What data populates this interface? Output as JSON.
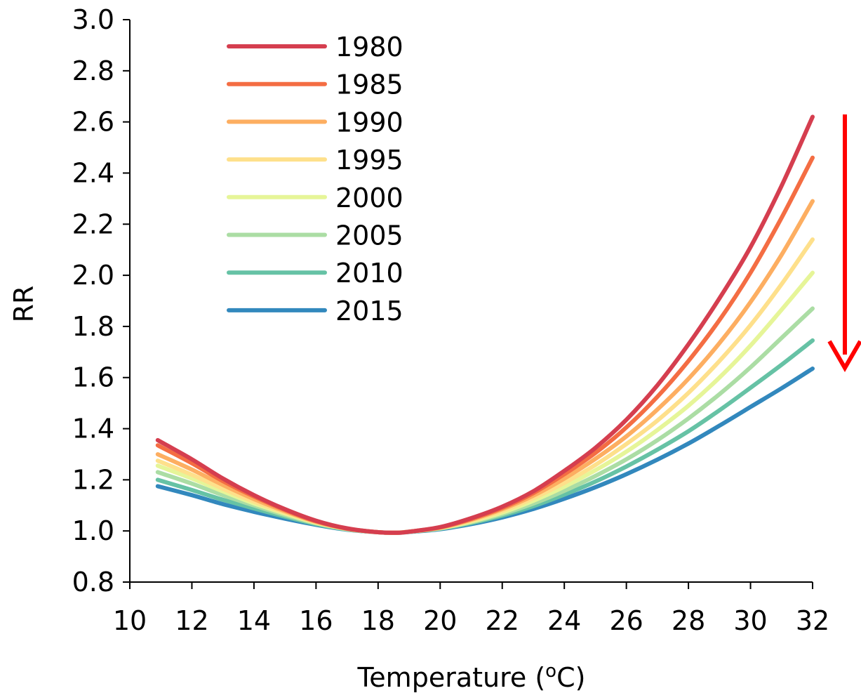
{
  "chart_data": {
    "type": "line",
    "xlabel": "Temperature (",
    "xlabel_sup": "o",
    "xlabel_suffix": "C)",
    "ylabel": "RR",
    "xlim": [
      10,
      32
    ],
    "ylim": [
      0.8,
      3.0
    ],
    "x_ticks": [
      "10",
      "12",
      "14",
      "16",
      "18",
      "20",
      "22",
      "24",
      "26",
      "28",
      "30",
      "32"
    ],
    "y_ticks": [
      "0.8",
      "1.0",
      "1.2",
      "1.4",
      "1.6",
      "1.8",
      "2.0",
      "2.2",
      "2.4",
      "2.6",
      "2.8",
      "3.0"
    ],
    "grid": false,
    "legend_position": "top-left",
    "x": [
      10.9,
      12,
      13,
      14,
      15,
      16,
      17,
      18,
      18.6,
      19,
      20,
      21,
      22,
      23,
      24,
      25,
      26,
      27,
      28,
      29,
      30,
      31,
      32
    ],
    "series": [
      {
        "name": "1980",
        "color": "#d53e4f",
        "values": [
          1.355,
          1.28,
          1.205,
          1.14,
          1.085,
          1.04,
          1.01,
          0.995,
          0.993,
          0.997,
          1.015,
          1.05,
          1.095,
          1.155,
          1.235,
          1.325,
          1.435,
          1.57,
          1.73,
          1.91,
          2.11,
          2.35,
          2.62
        ]
      },
      {
        "name": "1985",
        "color": "#f46d43",
        "values": [
          1.335,
          1.265,
          1.195,
          1.135,
          1.082,
          1.038,
          1.009,
          0.995,
          0.993,
          0.997,
          1.014,
          1.047,
          1.09,
          1.148,
          1.222,
          1.305,
          1.405,
          1.525,
          1.665,
          1.825,
          2.01,
          2.225,
          2.46
        ]
      },
      {
        "name": "1990",
        "color": "#fdae61",
        "values": [
          1.3,
          1.24,
          1.18,
          1.125,
          1.077,
          1.036,
          1.009,
          0.995,
          0.993,
          0.997,
          1.013,
          1.044,
          1.085,
          1.138,
          1.205,
          1.282,
          1.37,
          1.475,
          1.595,
          1.735,
          1.895,
          2.08,
          2.29
        ]
      },
      {
        "name": "1995",
        "color": "#fee08b",
        "values": [
          1.275,
          1.22,
          1.165,
          1.115,
          1.072,
          1.034,
          1.008,
          0.995,
          0.993,
          0.997,
          1.012,
          1.04,
          1.078,
          1.128,
          1.188,
          1.258,
          1.34,
          1.432,
          1.54,
          1.665,
          1.805,
          1.965,
          2.14
        ]
      },
      {
        "name": "2000",
        "color": "#e6f598",
        "values": [
          1.255,
          1.205,
          1.155,
          1.108,
          1.068,
          1.032,
          1.008,
          0.995,
          0.993,
          0.997,
          1.011,
          1.037,
          1.072,
          1.118,
          1.173,
          1.237,
          1.31,
          1.395,
          1.49,
          1.6,
          1.725,
          1.865,
          2.01
        ]
      },
      {
        "name": "2005",
        "color": "#abdda4",
        "values": [
          1.23,
          1.185,
          1.14,
          1.1,
          1.062,
          1.03,
          1.007,
          0.995,
          0.993,
          0.997,
          1.01,
          1.034,
          1.066,
          1.107,
          1.157,
          1.215,
          1.28,
          1.355,
          1.44,
          1.535,
          1.64,
          1.755,
          1.87
        ]
      },
      {
        "name": "2010",
        "color": "#66c2a5",
        "values": [
          1.2,
          1.16,
          1.122,
          1.088,
          1.056,
          1.027,
          1.006,
          0.995,
          0.993,
          0.997,
          1.009,
          1.031,
          1.06,
          1.097,
          1.142,
          1.193,
          1.252,
          1.318,
          1.39,
          1.472,
          1.56,
          1.65,
          1.745
        ]
      },
      {
        "name": "2015",
        "color": "#3288bd",
        "values": [
          1.175,
          1.14,
          1.105,
          1.075,
          1.048,
          1.024,
          1.005,
          0.995,
          0.993,
          0.996,
          1.007,
          1.027,
          1.053,
          1.086,
          1.126,
          1.171,
          1.222,
          1.279,
          1.342,
          1.412,
          1.485,
          1.558,
          1.635
        ]
      }
    ],
    "annotation": {
      "type": "down-arrow",
      "color": "#ff0000"
    }
  }
}
